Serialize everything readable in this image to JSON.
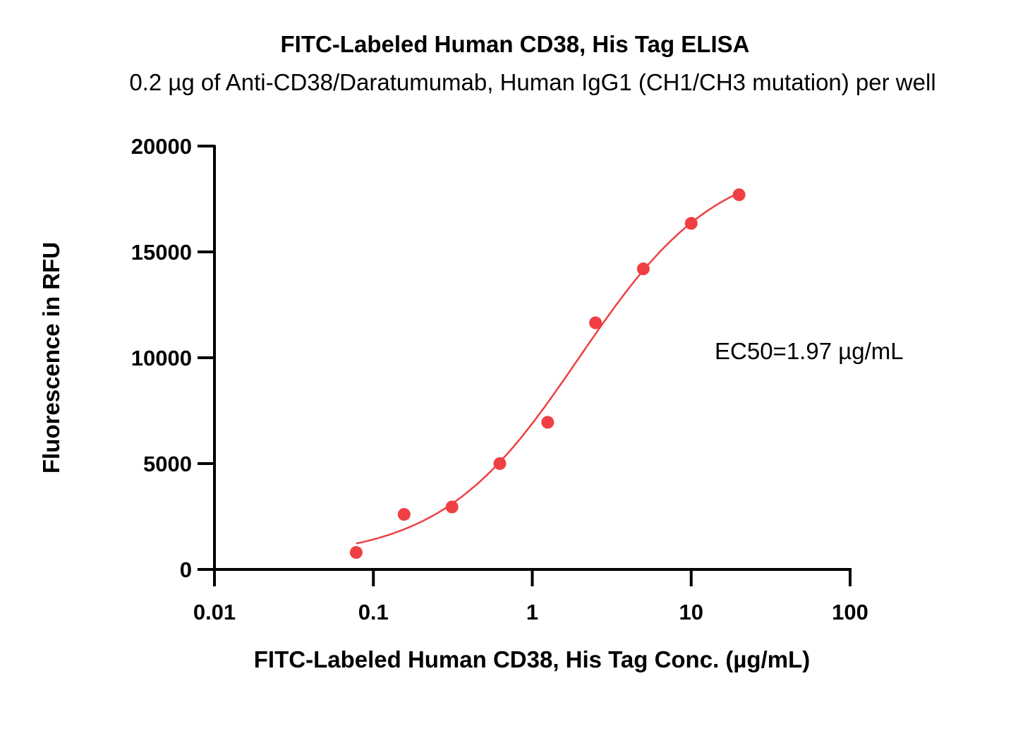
{
  "chart_data": {
    "type": "scatter",
    "title": "FITC-Labeled Human CD38, His Tag ELISA",
    "subtitle": "0.2 µg of Anti-CD38/Daratumumab, Human IgG1 (CH1/CH3 mutation) per well",
    "xlabel": "FITC-Labeled Human CD38, His Tag Conc. (µg/mL)",
    "ylabel": "Fluorescence in RFU",
    "x_scale": "log",
    "xlim": [
      0.01,
      100
    ],
    "ylim": [
      0,
      20000
    ],
    "x_ticks": [
      "0.01",
      "0.1",
      "1",
      "10",
      "100"
    ],
    "y_ticks": [
      "0",
      "5000",
      "10000",
      "15000",
      "20000"
    ],
    "grid": false,
    "annotation": "EC50=1.97 µg/mL",
    "series": [
      {
        "x": [
          0.078,
          0.156,
          0.3125,
          0.625,
          1.25,
          2.5,
          5,
          10,
          20
        ],
        "y": [
          800,
          2600,
          2950,
          5000,
          6950,
          11650,
          14200,
          16350,
          17700
        ],
        "fit": "sigmoidal",
        "color": "#ef3f43"
      }
    ]
  }
}
